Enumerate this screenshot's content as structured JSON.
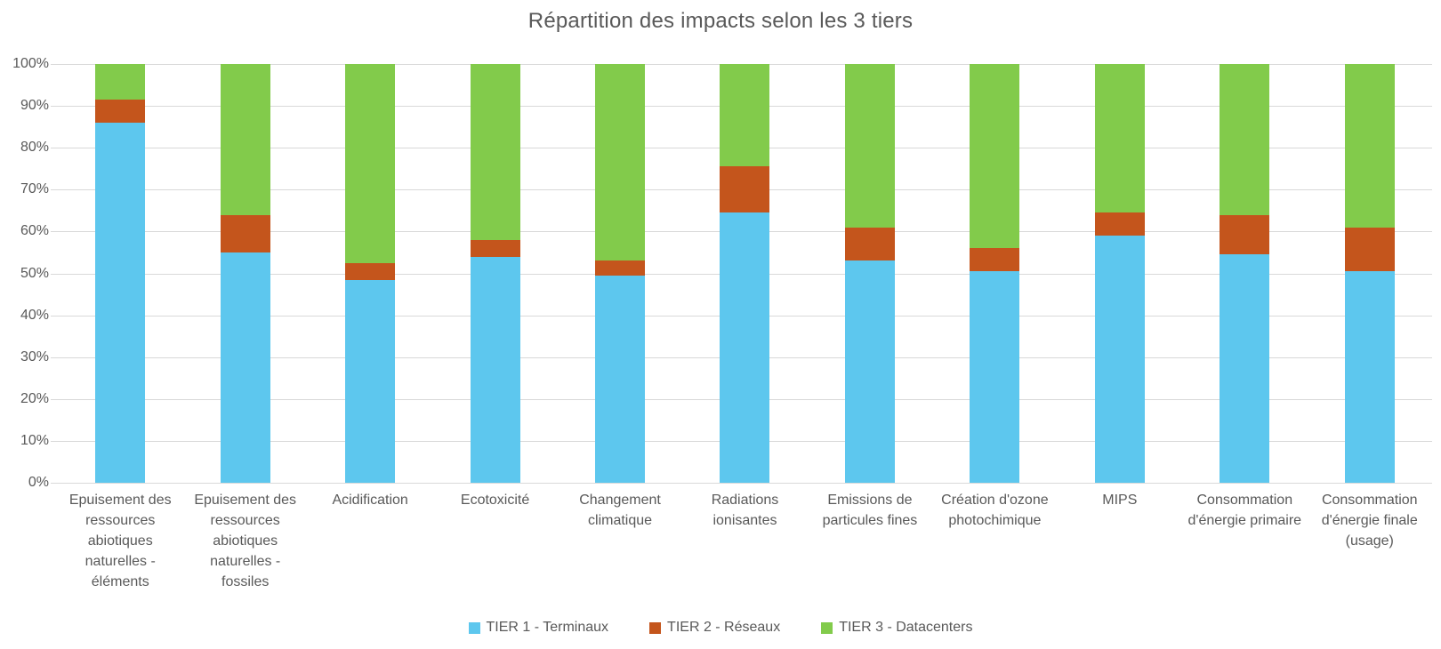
{
  "chart_data": {
    "type": "bar",
    "stacked": true,
    "percent_stacked": true,
    "title": "Répartition des impacts selon les 3 tiers",
    "categories": [
      "Epuisement des ressources abiotiques naturelles - éléments",
      "Epuisement des ressources abiotiques naturelles - fossiles",
      "Acidification",
      "Ecotoxicité",
      "Changement climatique",
      "Radiations ionisantes",
      "Emissions de particules fines",
      "Création d'ozone photochimique",
      "MIPS",
      "Consommation d'énergie primaire",
      "Consommation d'énergie finale (usage)"
    ],
    "series": [
      {
        "name": "TIER 1 - Terminaux",
        "color": "#5DC7EE",
        "values": [
          86,
          55,
          48.5,
          54,
          49.5,
          64.5,
          53,
          50.5,
          59,
          54.5,
          50.5
        ]
      },
      {
        "name": "TIER 2 - Réseaux",
        "color": "#C4551C",
        "values": [
          5.5,
          9,
          4,
          4,
          3.5,
          11,
          8,
          5.5,
          5.5,
          9.5,
          10.5
        ]
      },
      {
        "name": "TIER 3 - Datacenters",
        "color": "#82CB4B",
        "values": [
          8.5,
          36,
          47.5,
          42,
          47,
          24.5,
          39,
          44,
          35.5,
          36,
          39
        ]
      }
    ],
    "y_ticks": [
      "100%",
      "90%",
      "80%",
      "70%",
      "60%",
      "50%",
      "40%",
      "30%",
      "20%",
      "10%",
      "0%"
    ],
    "ylim": [
      0,
      100
    ],
    "xlabel": "",
    "ylabel": "",
    "grid": true,
    "legend_position": "bottom",
    "text_color": "#595959",
    "gridline_color": "#D9D9D9",
    "background_color": "#FFFFFF"
  }
}
